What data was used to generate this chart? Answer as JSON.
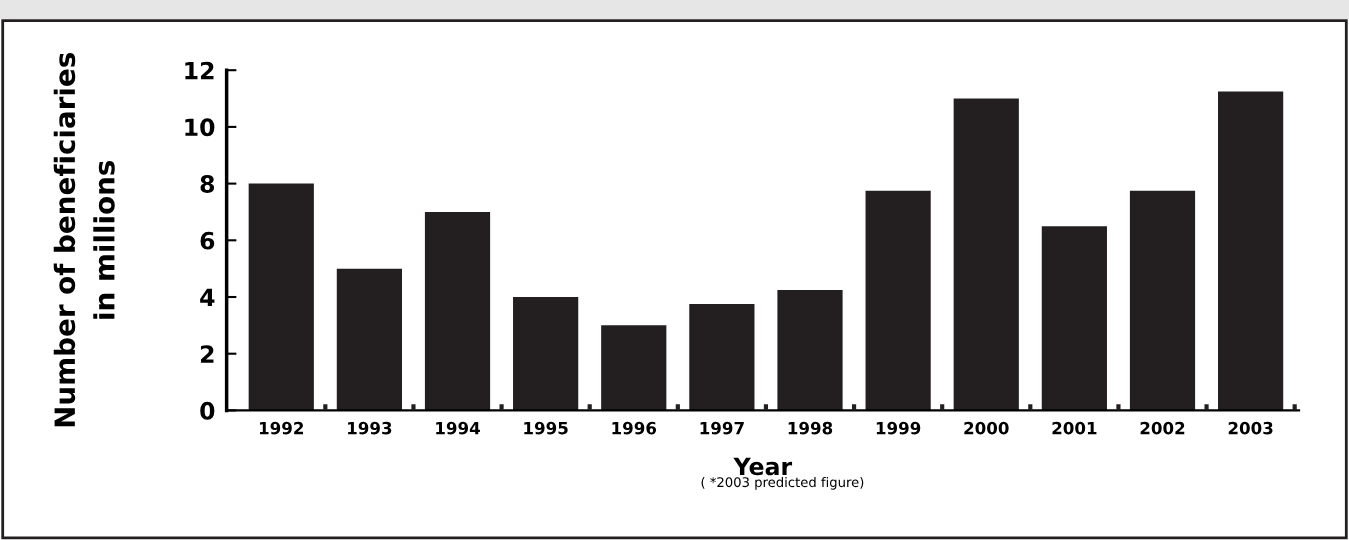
{
  "chart_data": {
    "type": "bar",
    "xlabel": "Year",
    "ylabel": "Number of beneficiaries\nin millions",
    "categories": [
      "1992",
      "1993",
      "1994",
      "1995",
      "1996",
      "1997",
      "1998",
      "1999",
      "2000",
      "2001",
      "2002",
      "2003"
    ],
    "values": [
      8,
      5,
      7,
      4,
      3,
      3.75,
      4.25,
      7.75,
      11,
      6.5,
      7.75,
      11.25
    ],
    "color": "#231f20",
    "ylim": [
      0,
      12
    ],
    "yticks": [
      0,
      2,
      4,
      6,
      8,
      10,
      12
    ],
    "grid": false,
    "legend": false,
    "annotations": [
      "( *2003 predicted figure)"
    ]
  }
}
